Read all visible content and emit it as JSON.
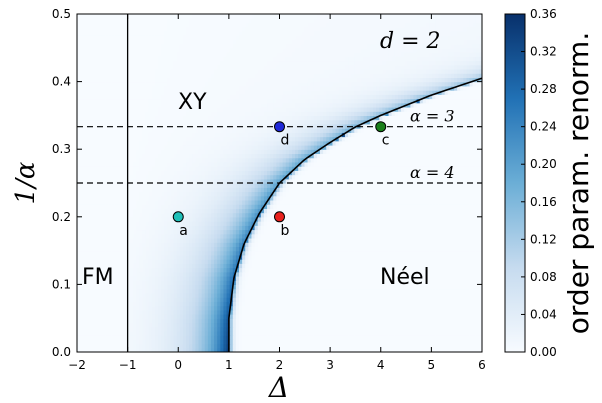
{
  "chart_data": {
    "type": "heatmap",
    "x": {
      "label": "Δ",
      "lim": [
        -2,
        6
      ],
      "ticks": [
        "−2",
        "−1",
        "0",
        "1",
        "2",
        "3",
        "4",
        "5",
        "6"
      ]
    },
    "y": {
      "label": "1/α",
      "lim": [
        0,
        0.5
      ],
      "ticks": [
        "0.0",
        "0.1",
        "0.2",
        "0.3",
        "0.4",
        "0.5"
      ]
    },
    "annotation_d": "d = 2",
    "regions": {
      "xy": "XY",
      "fm": "FM",
      "neel": "Néel"
    },
    "fm_boundary_x": -1,
    "neel_boundary": [
      [
        1.0,
        0.0
      ],
      [
        1.0,
        0.05
      ],
      [
        1.1,
        0.11
      ],
      [
        1.3,
        0.16
      ],
      [
        1.6,
        0.205
      ],
      [
        2.0,
        0.25
      ],
      [
        2.5,
        0.285
      ],
      [
        3.0,
        0.31
      ],
      [
        3.5,
        0.333
      ],
      [
        4.0,
        0.35
      ],
      [
        5.0,
        0.38
      ],
      [
        6.0,
        0.405
      ]
    ],
    "dashed_lines": [
      {
        "y": 0.3333,
        "label": "α = 3"
      },
      {
        "y": 0.25,
        "label": "α = 4"
      }
    ],
    "points": [
      {
        "label": "a",
        "x": 0,
        "y": 0.2,
        "color": "#1fbfb8"
      },
      {
        "label": "b",
        "x": 2,
        "y": 0.2,
        "color": "#e8211e"
      },
      {
        "label": "c",
        "x": 4,
        "y": 0.3333,
        "color": "#1a7f1a"
      },
      {
        "label": "d",
        "x": 2,
        "y": 0.3333,
        "color": "#1f28d8"
      }
    ],
    "colorbar": {
      "label": "order param. renorm.",
      "min": 0.0,
      "max": 0.36,
      "ticks": [
        "0.00",
        "0.04",
        "0.08",
        "0.12",
        "0.16",
        "0.20",
        "0.24",
        "0.28",
        "0.32",
        "0.36"
      ],
      "colormap": "Blues"
    }
  }
}
